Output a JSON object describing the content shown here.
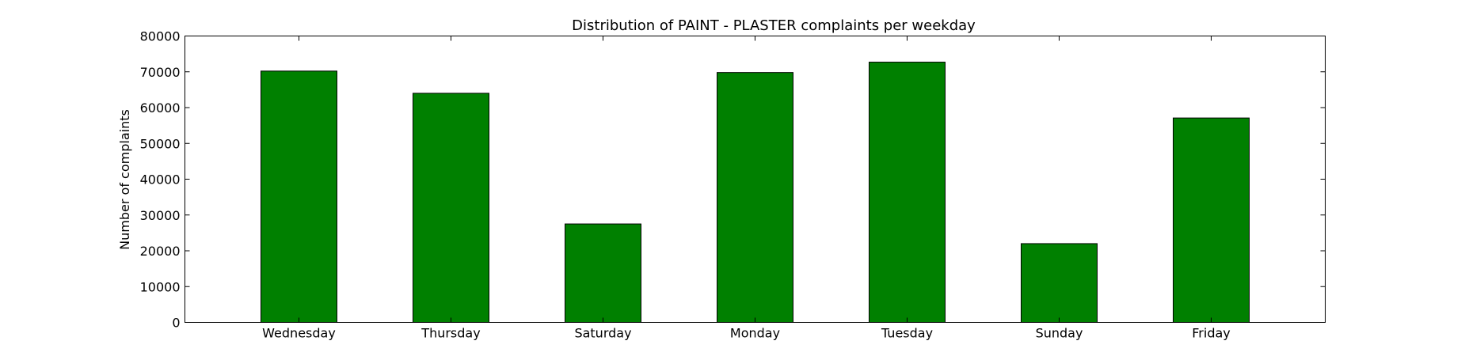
{
  "chart_data": {
    "type": "bar",
    "title": "Distribution of  PAINT - PLASTER complaints per weekday",
    "xlabel": "",
    "ylabel": "Number of complaints",
    "categories": [
      "Wednesday",
      "Thursday",
      "Saturday",
      "Monday",
      "Tuesday",
      "Sunday",
      "Friday"
    ],
    "values": [
      70200,
      64000,
      27500,
      69800,
      72700,
      22000,
      57100
    ],
    "ylim": [
      0,
      80000
    ],
    "yticks": [
      0,
      10000,
      20000,
      30000,
      40000,
      50000,
      60000,
      70000,
      80000
    ],
    "bar_color": "#008000",
    "grid": false,
    "legend": "none"
  }
}
